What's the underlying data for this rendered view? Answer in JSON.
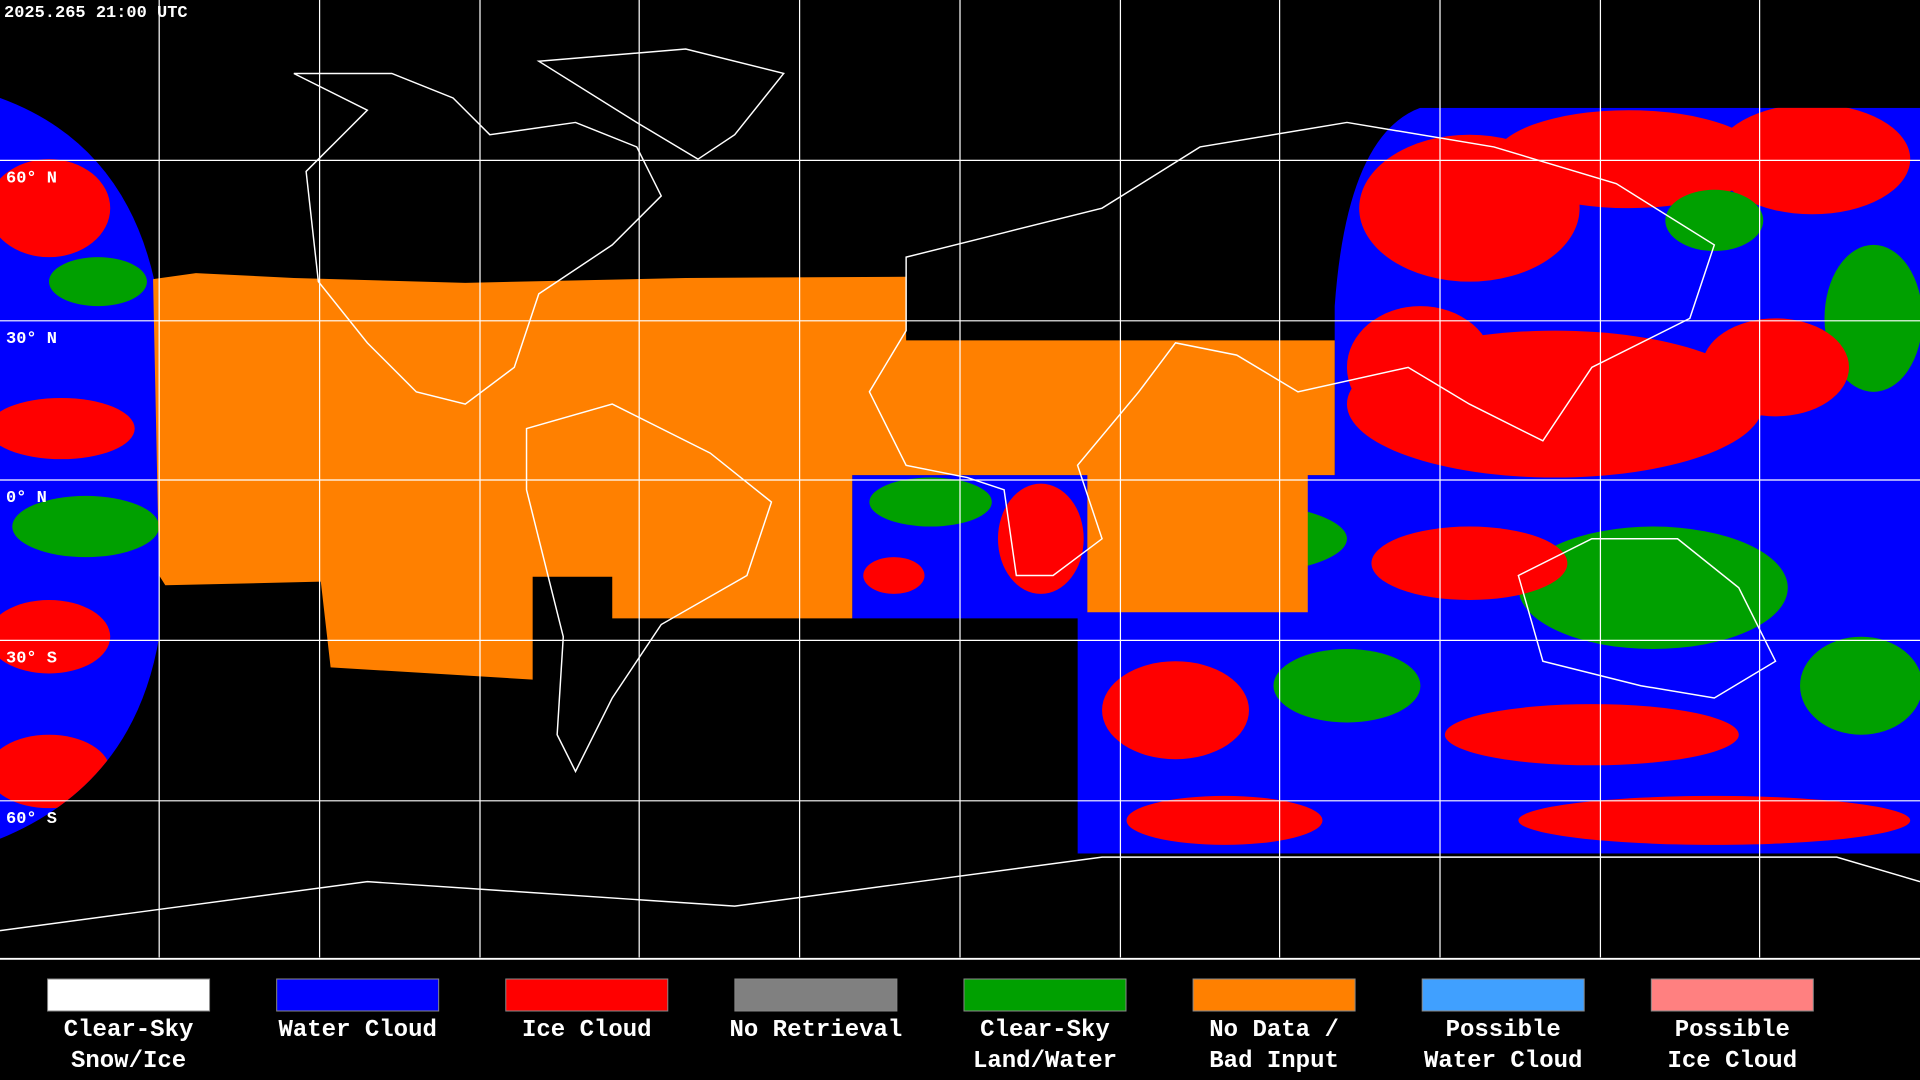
{
  "header": {
    "timestamp": "2025.265 21:00 UTC"
  },
  "latitude_labels": [
    "60° N",
    "30° N",
    "0° N",
    "30° S",
    "60° S"
  ],
  "legend": [
    {
      "lines": [
        "Clear-Sky",
        "Snow/Ice"
      ],
      "color": "#ffffff"
    },
    {
      "lines": [
        "Water Cloud"
      ],
      "color": "#0000ff"
    },
    {
      "lines": [
        "Ice Cloud"
      ],
      "color": "#ff0000"
    },
    {
      "lines": [
        "No Retrieval"
      ],
      "color": "#808080"
    },
    {
      "lines": [
        "Clear-Sky",
        "Land/Water"
      ],
      "color": "#00a000"
    },
    {
      "lines": [
        "No Data /",
        "Bad Input"
      ],
      "color": "#ff8000"
    },
    {
      "lines": [
        "Possible",
        "Water Cloud"
      ],
      "color": "#40a0ff"
    },
    {
      "lines": [
        "Possible",
        "Ice Cloud"
      ],
      "color": "#ff8080"
    }
  ]
}
